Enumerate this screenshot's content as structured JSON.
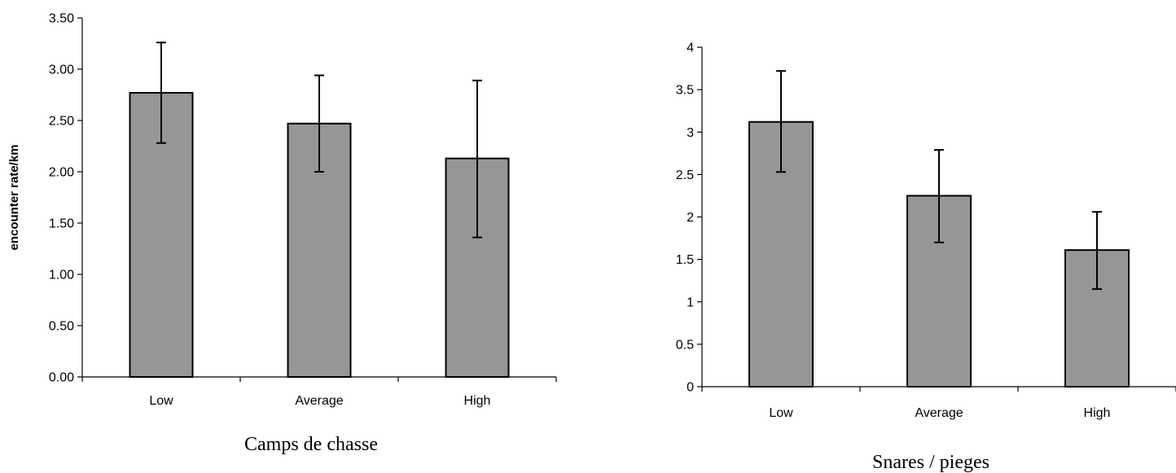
{
  "colors": {
    "bar_fill": "#969696",
    "bar_stroke": "#000000",
    "axis": "#000000"
  },
  "chart_data": [
    {
      "type": "bar",
      "title": "",
      "xlabel": "Camps de chasse",
      "ylabel": "encounter rate/km",
      "categories": [
        "Low",
        "Average",
        "High"
      ],
      "values": [
        2.77,
        2.47,
        2.13
      ],
      "error_upper": [
        3.26,
        2.94,
        2.89
      ],
      "error_lower": [
        2.28,
        2.0,
        1.36
      ],
      "ylim": [
        0,
        3.5
      ],
      "yticks": [
        "0.00",
        "0.50",
        "1.00",
        "1.50",
        "2.00",
        "2.50",
        "3.00",
        "3.50"
      ],
      "grid": false,
      "legend": "none"
    },
    {
      "type": "bar",
      "title": "",
      "xlabel": "Snares / pieges",
      "ylabel": "",
      "categories": [
        "Low",
        "Average",
        "High"
      ],
      "values": [
        3.12,
        2.25,
        1.61
      ],
      "error_upper": [
        3.72,
        2.79,
        2.06
      ],
      "error_lower": [
        2.53,
        1.7,
        1.15
      ],
      "ylim": [
        0,
        4
      ],
      "yticks": [
        "0",
        "0.5",
        "1",
        "1.5",
        "2",
        "2.5",
        "3",
        "3.5",
        "4"
      ],
      "grid": false,
      "legend": "none"
    }
  ]
}
